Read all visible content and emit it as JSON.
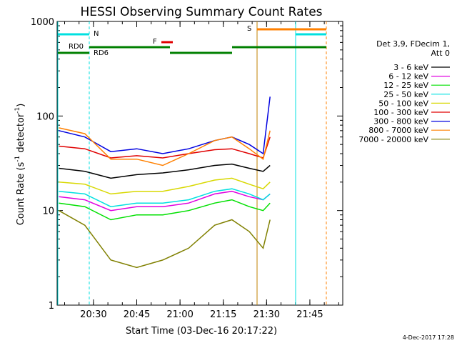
{
  "chart_data": {
    "type": "line",
    "title": "HESSI Observing Summary Count Rates",
    "xlabel": "Start Time (03-Dec-16 20:17:22)",
    "ylabel_main": "Count Rate (s",
    "ylabel_sup1": "-1",
    "ylabel_mid": " detector",
    "ylabel_sup2": "-1",
    "ylabel_end": ")",
    "yscale": "log",
    "ylim": [
      1,
      1000
    ],
    "xlim_minutes": [
      20.29,
      21.94
    ],
    "x_ticks": [
      {
        "value": 20.5,
        "label": "20:30"
      },
      {
        "value": 20.75,
        "label": "20:45"
      },
      {
        "value": 21.0,
        "label": "21:00"
      },
      {
        "value": 21.25,
        "label": "21:15"
      },
      {
        "value": 21.5,
        "label": "21:30"
      },
      {
        "value": 21.75,
        "label": "21:45"
      }
    ],
    "y_ticks": [
      {
        "value": 1,
        "label": "1"
      },
      {
        "value": 10,
        "label": "10"
      },
      {
        "value": 100,
        "label": "100"
      },
      {
        "value": 1000,
        "label": "1000"
      }
    ],
    "legend_header": [
      "Det 3,9, FDecim 1,",
      "Att 0"
    ],
    "series": [
      {
        "name": "3 - 6 keV",
        "color": "#000000",
        "values": [
          28,
          26,
          22,
          24,
          25,
          27,
          30,
          31,
          28,
          26,
          30
        ]
      },
      {
        "name": "6 - 12 keV",
        "color": "#e000e0",
        "values": [
          14,
          13,
          10,
          11,
          11,
          12,
          15,
          16,
          14,
          13,
          15
        ]
      },
      {
        "name": "12 - 25 keV",
        "color": "#00e000",
        "values": [
          12,
          11,
          8,
          9,
          9,
          10,
          12,
          13,
          11,
          10,
          12
        ]
      },
      {
        "name": "25 - 50 keV",
        "color": "#00e0e0",
        "values": [
          16,
          15,
          11,
          12,
          12,
          13,
          16,
          17,
          15,
          13,
          15
        ]
      },
      {
        "name": "50 - 100 keV",
        "color": "#d8d800",
        "values": [
          20,
          19,
          15,
          16,
          16,
          18,
          21,
          22,
          19,
          17,
          20
        ]
      },
      {
        "name": "100 - 300 keV",
        "color": "#e00000",
        "values": [
          48,
          45,
          36,
          38,
          36,
          40,
          44,
          45,
          40,
          36,
          60
        ]
      },
      {
        "name": "300 - 800 keV",
        "color": "#0000e0",
        "values": [
          70,
          60,
          42,
          45,
          40,
          45,
          55,
          60,
          50,
          40,
          160
        ]
      },
      {
        "name": "800 - 7000 keV",
        "color": "#ff8000",
        "values": [
          75,
          65,
          35,
          35,
          30,
          40,
          55,
          60,
          45,
          35,
          70
        ]
      },
      {
        "name": "7000 - 20000 keV",
        "color": "#808000",
        "values": [
          10,
          7,
          3,
          2.5,
          3,
          4,
          7,
          8,
          6,
          4,
          8
        ]
      }
    ],
    "series_x_minutes": [
      20.3,
      20.45,
      20.6,
      20.75,
      20.9,
      21.05,
      21.2,
      21.3,
      21.4,
      21.48,
      21.52
    ],
    "annotations": {
      "N": "N",
      "S": "S",
      "F": "F",
      "RD0": "RD0",
      "RD6": "RD6"
    },
    "grid": false,
    "legend_position": "right",
    "timestamp": "4-Dec-2017 17:28"
  }
}
